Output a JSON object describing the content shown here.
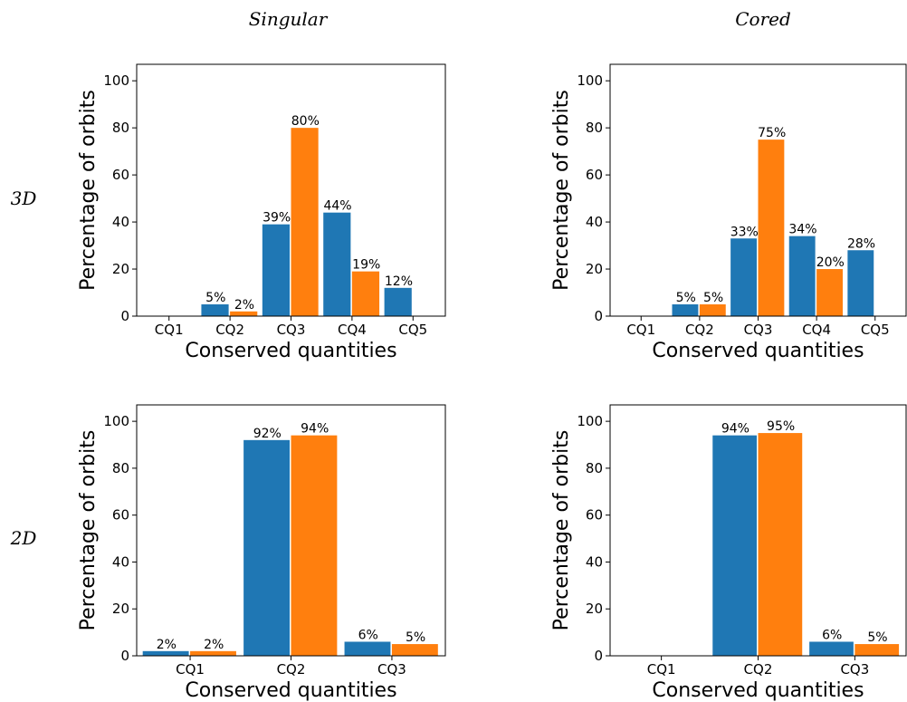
{
  "column_headers": [
    "Singular",
    "Cored"
  ],
  "row_headers": [
    "3D",
    "2D"
  ],
  "series_colors": [
    "#1f77b4",
    "#ff7f0e"
  ],
  "chart_data": [
    {
      "type": "bar",
      "categories": [
        "CQ1",
        "CQ2",
        "CQ3",
        "CQ4",
        "CQ5"
      ],
      "series": [
        {
          "values": [
            0,
            5,
            39,
            44,
            12
          ],
          "labels": [
            "",
            "5%",
            "39%",
            "44%",
            "12%"
          ]
        },
        {
          "values": [
            0,
            2,
            80,
            19,
            0
          ],
          "labels": [
            "",
            "2%",
            "80%",
            "19%",
            ""
          ]
        }
      ],
      "xlabel": "Conserved quantities",
      "ylabel": "Percentage of orbits",
      "ylim": [
        0,
        107
      ],
      "yticks": [
        0,
        20,
        40,
        60,
        80,
        100
      ],
      "grid": false
    },
    {
      "type": "bar",
      "categories": [
        "CQ1",
        "CQ2",
        "CQ3",
        "CQ4",
        "CQ5"
      ],
      "series": [
        {
          "values": [
            0,
            5,
            33,
            34,
            28
          ],
          "labels": [
            "",
            "5%",
            "33%",
            "34%",
            "28%"
          ]
        },
        {
          "values": [
            0,
            5,
            75,
            20,
            0
          ],
          "labels": [
            "",
            "5%",
            "75%",
            "20%",
            ""
          ]
        }
      ],
      "xlabel": "Conserved quantities",
      "ylabel": "Percentage of orbits",
      "ylim": [
        0,
        107
      ],
      "yticks": [
        0,
        20,
        40,
        60,
        80,
        100
      ],
      "grid": false
    },
    {
      "type": "bar",
      "categories": [
        "CQ1",
        "CQ2",
        "CQ3"
      ],
      "series": [
        {
          "values": [
            2,
            92,
            6
          ],
          "labels": [
            "2%",
            "92%",
            "6%"
          ]
        },
        {
          "values": [
            2,
            94,
            5
          ],
          "labels": [
            "2%",
            "94%",
            "5%"
          ]
        }
      ],
      "xlabel": "Conserved quantities",
      "ylabel": "Percentage of orbits",
      "ylim": [
        0,
        107
      ],
      "yticks": [
        0,
        20,
        40,
        60,
        80,
        100
      ],
      "grid": false
    },
    {
      "type": "bar",
      "categories": [
        "CQ1",
        "CQ2",
        "CQ3"
      ],
      "series": [
        {
          "values": [
            0,
            94,
            6
          ],
          "labels": [
            "",
            "94%",
            "6%"
          ]
        },
        {
          "values": [
            0,
            95,
            5
          ],
          "labels": [
            "",
            "95%",
            "5%"
          ]
        }
      ],
      "xlabel": "Conserved quantities",
      "ylabel": "Percentage of orbits",
      "ylim": [
        0,
        107
      ],
      "yticks": [
        0,
        20,
        40,
        60,
        80,
        100
      ],
      "grid": false
    }
  ]
}
